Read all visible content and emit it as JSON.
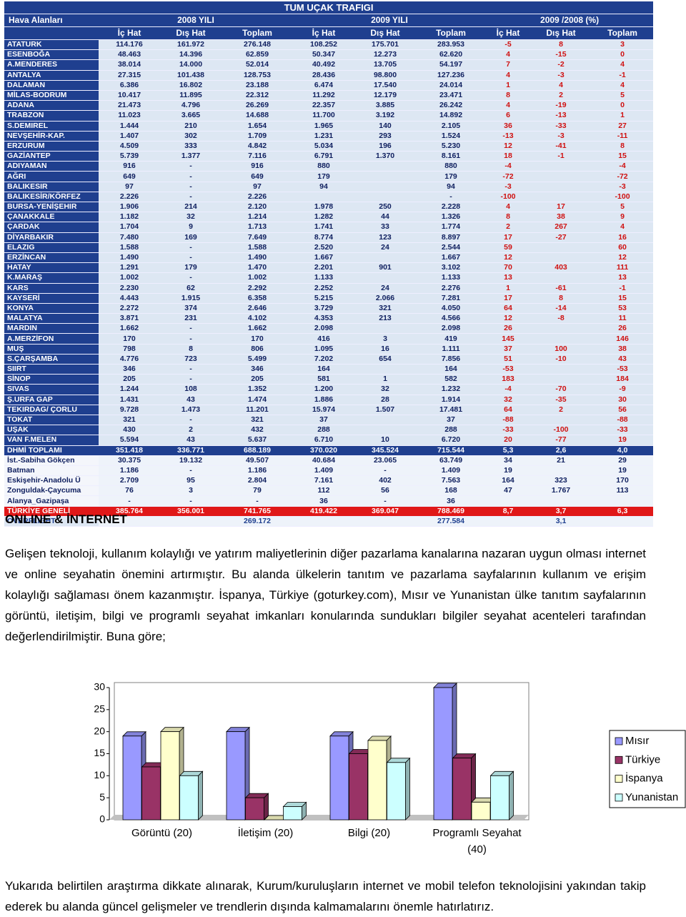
{
  "table": {
    "title": "TUM UÇAK TRAFIGI",
    "group_headers": [
      "Hava Alanları",
      "2008 YILI",
      "2009 YILI",
      "2009 /2008 (%)"
    ],
    "sub_headers": [
      "İç Hat",
      "Dış Hat",
      "Toplam",
      "İç Hat",
      "Dış Hat",
      "Toplam",
      "İç Hat",
      "Dış Hat",
      "Toplam"
    ],
    "rows": [
      [
        "ATATURK",
        "114.176",
        "161.972",
        "276.148",
        "108.252",
        "175.701",
        "283.953",
        "-5",
        "8",
        "3"
      ],
      [
        "ESENBOĞA",
        "48.463",
        "14.396",
        "62.859",
        "50.347",
        "12.273",
        "62.620",
        "4",
        "-15",
        "0"
      ],
      [
        "A.MENDERES",
        "38.014",
        "14.000",
        "52.014",
        "40.492",
        "13.705",
        "54.197",
        "7",
        "-2",
        "4"
      ],
      [
        "ANTALYA",
        "27.315",
        "101.438",
        "128.753",
        "28.436",
        "98.800",
        "127.236",
        "4",
        "-3",
        "-1"
      ],
      [
        "DALAMAN",
        "6.386",
        "16.802",
        "23.188",
        "6.474",
        "17.540",
        "24.014",
        "1",
        "4",
        "4"
      ],
      [
        "MİLAS-BODRUM",
        "10.417",
        "11.895",
        "22.312",
        "11.292",
        "12.179",
        "23.471",
        "8",
        "2",
        "5"
      ],
      [
        "ADANA",
        "21.473",
        "4.796",
        "26.269",
        "22.357",
        "3.885",
        "26.242",
        "4",
        "-19",
        "0"
      ],
      [
        "TRABZON",
        "11.023",
        "3.665",
        "14.688",
        "11.700",
        "3.192",
        "14.892",
        "6",
        "-13",
        "1"
      ],
      [
        "S.DEMIREL",
        "1.444",
        "210",
        "1.654",
        "1.965",
        "140",
        "2.105",
        "36",
        "-33",
        "27"
      ],
      [
        "NEVŞEHİR-KAP.",
        "1.407",
        "302",
        "1.709",
        "1.231",
        "293",
        "1.524",
        "-13",
        "-3",
        "-11"
      ],
      [
        "ERZURUM",
        "4.509",
        "333",
        "4.842",
        "5.034",
        "196",
        "5.230",
        "12",
        "-41",
        "8"
      ],
      [
        "GAZİANTEP",
        "5.739",
        "1.377",
        "7.116",
        "6.791",
        "1.370",
        "8.161",
        "18",
        "-1",
        "15"
      ],
      [
        "ADIYAMAN",
        "916",
        "-",
        "916",
        "880",
        null,
        "880",
        "-4",
        null,
        "-4"
      ],
      [
        "AĞRI",
        "649",
        "-",
        "649",
        "179",
        null,
        "179",
        "-72",
        null,
        "-72"
      ],
      [
        "BALIKESIR",
        "97",
        "-",
        "97",
        "94",
        null,
        "94",
        "-3",
        null,
        "-3"
      ],
      [
        "BALIKESİR/KÖRFEZ",
        "2.226",
        "-",
        "2.226",
        null,
        null,
        "-",
        "-100",
        null,
        "-100"
      ],
      [
        "BURSA-YENİŞEHIR",
        "1.906",
        "214",
        "2.120",
        "1.978",
        "250",
        "2.228",
        "4",
        "17",
        "5"
      ],
      [
        "ÇANAKKALE",
        "1.182",
        "32",
        "1.214",
        "1.282",
        "44",
        "1.326",
        "8",
        "38",
        "9"
      ],
      [
        "ÇARDAK",
        "1.704",
        "9",
        "1.713",
        "1.741",
        "33",
        "1.774",
        "2",
        "267",
        "4"
      ],
      [
        "DİYARBAKIR",
        "7.480",
        "169",
        "7.649",
        "8.774",
        "123",
        "8.897",
        "17",
        "-27",
        "16"
      ],
      [
        "ELAZIG",
        "1.588",
        "-",
        "1.588",
        "2.520",
        "24",
        "2.544",
        "59",
        null,
        "60"
      ],
      [
        "ERZİNCAN",
        "1.490",
        "-",
        "1.490",
        "1.667",
        null,
        "1.667",
        "12",
        null,
        "12"
      ],
      [
        "HATAY",
        "1.291",
        "179",
        "1.470",
        "2.201",
        "901",
        "3.102",
        "70",
        "403",
        "111"
      ],
      [
        "K.MARAŞ",
        "1.002",
        "-",
        "1.002",
        "1.133",
        null,
        "1.133",
        "13",
        null,
        "13"
      ],
      [
        "KARS",
        "2.230",
        "62",
        "2.292",
        "2.252",
        "24",
        "2.276",
        "1",
        "-61",
        "-1"
      ],
      [
        "KAYSERİ",
        "4.443",
        "1.915",
        "6.358",
        "5.215",
        "2.066",
        "7.281",
        "17",
        "8",
        "15"
      ],
      [
        "KONYA",
        "2.272",
        "374",
        "2.646",
        "3.729",
        "321",
        "4.050",
        "64",
        "-14",
        "53"
      ],
      [
        "MALATYA",
        "3.871",
        "231",
        "4.102",
        "4.353",
        "213",
        "4.566",
        "12",
        "-8",
        "11"
      ],
      [
        "MARDIN",
        "1.662",
        "-",
        "1.662",
        "2.098",
        null,
        "2.098",
        "26",
        null,
        "26"
      ],
      [
        "A.MERZİFON",
        "170",
        "-",
        "170",
        "416",
        "3",
        "419",
        "145",
        null,
        "146"
      ],
      [
        "MUŞ",
        "798",
        "8",
        "806",
        "1.095",
        "16",
        "1.111",
        "37",
        "100",
        "38"
      ],
      [
        "S.ÇARŞAMBA",
        "4.776",
        "723",
        "5.499",
        "7.202",
        "654",
        "7.856",
        "51",
        "-10",
        "43"
      ],
      [
        "SIIRT",
        "346",
        "-",
        "346",
        "164",
        null,
        "164",
        "-53",
        null,
        "-53"
      ],
      [
        "SİNOP",
        "205",
        "-",
        "205",
        "581",
        "1",
        "582",
        "183",
        null,
        "184"
      ],
      [
        "SIVAS",
        "1.244",
        "108",
        "1.352",
        "1.200",
        "32",
        "1.232",
        "-4",
        "-70",
        "-9"
      ],
      [
        "Ş.URFA GAP",
        "1.431",
        "43",
        "1.474",
        "1.886",
        "28",
        "1.914",
        "32",
        "-35",
        "30"
      ],
      [
        "TEKIRDAG/ ÇORLU",
        "9.728",
        "1.473",
        "11.201",
        "15.974",
        "1.507",
        "17.481",
        "64",
        "2",
        "56"
      ],
      [
        "TOKAT",
        "321",
        "-",
        "321",
        "37",
        null,
        "37",
        "-88",
        null,
        "-88"
      ],
      [
        "UŞAK",
        "430",
        "2",
        "432",
        "288",
        null,
        "288",
        "-33",
        "-100",
        "-33"
      ],
      [
        "VAN F.MELEN",
        "5.594",
        "43",
        "5.637",
        "6.710",
        "10",
        "6.720",
        "20",
        "-77",
        "19"
      ],
      [
        "DHMİ TOPLAMI",
        "351.418",
        "336.771",
        "688.189",
        "370.020",
        "345.524",
        "715.544",
        "5,3",
        "2,6",
        "4,0"
      ],
      [
        "İst.-Sabiha Gökçen",
        "30.375",
        "19.132",
        "49.507",
        "40.684",
        "23.065",
        "63.749",
        "34",
        "21",
        "29"
      ],
      [
        "Batman",
        "1.186",
        "-",
        "1.186",
        "1.409",
        "-",
        "1.409",
        "19",
        null,
        "19"
      ],
      [
        "Eskişehir-Anadolu Ü",
        "2.709",
        "95",
        "2.804",
        "7.161",
        "402",
        "7.563",
        "164",
        "323",
        "170"
      ],
      [
        "Zonguldak-Çaycuma",
        "76",
        "3",
        "79",
        "112",
        "56",
        "168",
        "47",
        "1.767",
        "113"
      ],
      [
        "Alanya_Gazipaşa",
        "-",
        "-",
        "-",
        "36",
        "-",
        "36",
        null,
        null,
        null
      ],
      [
        "TÜRKİYE GENELİ",
        "385.764",
        "356.001",
        "741.765",
        "419.422",
        "369.047",
        "788.469",
        "8,7",
        "3,7",
        "6,3"
      ],
      [
        "OVERFLIGHT",
        null,
        null,
        "269.172",
        null,
        null,
        "277.584",
        null,
        "3,1",
        null
      ]
    ]
  },
  "heading": "ONLINE & İNTERNET",
  "paragraphs": [
    "Gelişen teknoloji, kullanım kolaylığı ve yatırım maliyetlerinin diğer pazarlama kanalarına nazaran uygun olması internet ve online seyahatin önemini artırmıştır. Bu alanda ülkelerin tanıtım ve pazarlama sayfalarının kullanım ve erişim kolaylığı sağlaması önem kazanmıştır. İspanya, Türkiye (goturkey.com), Mısır ve Yunanistan ülke tanıtım sayfalarının görüntü, iletişim, bilgi ve programlı seyahat imkanları konularında sundukları bilgiler seyahat acenteleri tarafından değerlendirilmiştir. Buna göre;",
    "Yukarıda belirtilen araştırma dikkate alınarak, Kurum/kuruluşların internet ve mobil telefon teknolojisini yakından takip ederek bu alanda güncel gelişmeler ve trendlerin dışında kalmamalarını önemle hatırlatırız."
  ],
  "chart_data": {
    "type": "bar",
    "categories": [
      "Görüntü (20)",
      "İletişim (20)",
      "Bilgi (20)",
      "Programlı Seyahat (40)"
    ],
    "series": [
      {
        "name": "Mısır",
        "color": "#9999ff",
        "values": [
          19,
          20,
          19,
          30
        ]
      },
      {
        "name": "Türkiye",
        "color": "#993366",
        "values": [
          12,
          5,
          15,
          14
        ]
      },
      {
        "name": "İspanya",
        "color": "#ffffcc",
        "values": [
          20,
          0,
          18,
          4
        ]
      },
      {
        "name": "Yunanistan",
        "color": "#ccffff",
        "values": [
          10,
          3,
          13,
          10
        ]
      }
    ],
    "ylim": [
      0,
      30
    ],
    "yticks": [
      0,
      5,
      10,
      15,
      20,
      25,
      30
    ],
    "legend": "right"
  }
}
